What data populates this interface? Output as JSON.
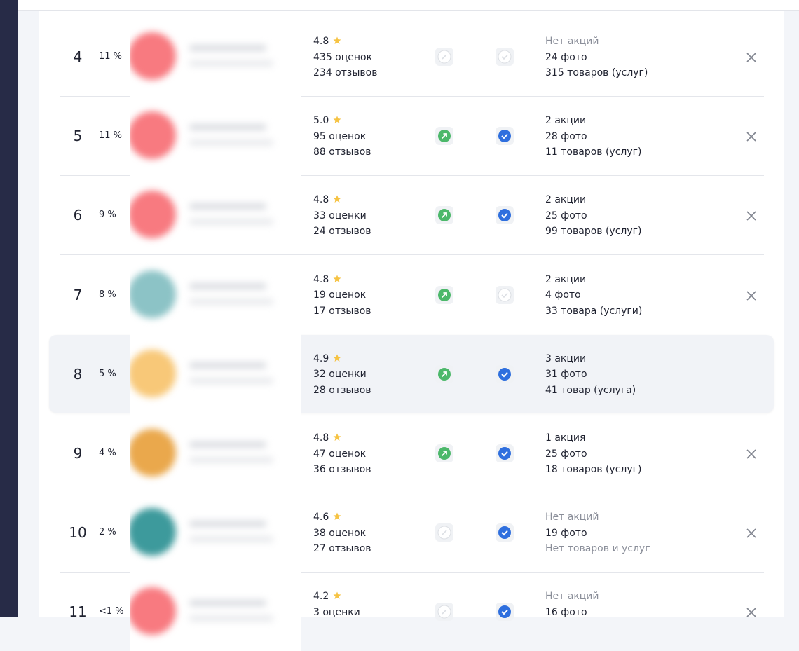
{
  "rows": [
    {
      "rank": 4,
      "share": "11 %",
      "rating": "4.8",
      "counts": [
        "435 оценок",
        "234 отзывов"
      ],
      "promoted": false,
      "verified": false,
      "logo_color": "#f87a80",
      "highlighted": false,
      "details": [
        {
          "text": "Нет акций",
          "muted": true
        },
        {
          "text": "24 фото",
          "muted": false
        },
        {
          "text": "315 товаров (услуг)",
          "muted": false
        }
      ]
    },
    {
      "rank": 5,
      "share": "11 %",
      "rating": "5.0",
      "counts": [
        "95 оценок",
        "88 отзывов"
      ],
      "promoted": true,
      "verified": true,
      "logo_color": "#f87a80",
      "highlighted": false,
      "details": [
        {
          "text": "2 акции",
          "muted": false
        },
        {
          "text": "28 фото",
          "muted": false
        },
        {
          "text": "11 товаров (услуг)",
          "muted": false
        }
      ]
    },
    {
      "rank": 6,
      "share": "9 %",
      "rating": "4.8",
      "counts": [
        "33 оценки",
        "24 отзывов"
      ],
      "promoted": true,
      "verified": true,
      "logo_color": "#f87a80",
      "highlighted": false,
      "details": [
        {
          "text": "2 акции",
          "muted": false
        },
        {
          "text": "25 фото",
          "muted": false
        },
        {
          "text": "99 товаров (услуг)",
          "muted": false
        }
      ]
    },
    {
      "rank": 7,
      "share": "8 %",
      "rating": "4.8",
      "counts": [
        "19 оценок",
        "17 отзывов"
      ],
      "promoted": true,
      "verified": false,
      "logo_color": "#8cc3c6",
      "highlighted": false,
      "details": [
        {
          "text": "2 акции",
          "muted": false
        },
        {
          "text": "4 фото",
          "muted": false
        },
        {
          "text": "33 товара (услуги)",
          "muted": false
        }
      ]
    },
    {
      "rank": 8,
      "share": "5 %",
      "rating": "4.9",
      "counts": [
        "32 оценки",
        "28 отзывов"
      ],
      "promoted": true,
      "verified": true,
      "logo_color": "#f8c878",
      "highlighted": true,
      "details": [
        {
          "text": "3 акции",
          "muted": false
        },
        {
          "text": "31 фото",
          "muted": false
        },
        {
          "text": "41 товар (услуга)",
          "muted": false
        }
      ]
    },
    {
      "rank": 9,
      "share": "4 %",
      "rating": "4.8",
      "counts": [
        "47 оценок",
        "36 отзывов"
      ],
      "promoted": true,
      "verified": true,
      "logo_color": "#eaa84c",
      "highlighted": false,
      "details": [
        {
          "text": "1 акция",
          "muted": false
        },
        {
          "text": "25 фото",
          "muted": false
        },
        {
          "text": "18 товаров (услуг)",
          "muted": false
        }
      ]
    },
    {
      "rank": 10,
      "share": "2 %",
      "rating": "4.6",
      "counts": [
        "38 оценок",
        "27 отзывов"
      ],
      "promoted": false,
      "verified": true,
      "logo_color": "#3d9a9c",
      "highlighted": false,
      "details": [
        {
          "text": "Нет акций",
          "muted": true
        },
        {
          "text": "19 фото",
          "muted": false
        },
        {
          "text": "Нет товаров и услуг",
          "muted": true
        }
      ]
    },
    {
      "rank": 11,
      "share": "<1 %",
      "rating": "4.2",
      "counts": [
        "3 оценки"
      ],
      "promoted": false,
      "verified": true,
      "logo_color": "#f87a80",
      "highlighted": false,
      "details": [
        {
          "text": "Нет акций",
          "muted": true
        },
        {
          "text": "16 фото",
          "muted": false
        }
      ]
    }
  ]
}
